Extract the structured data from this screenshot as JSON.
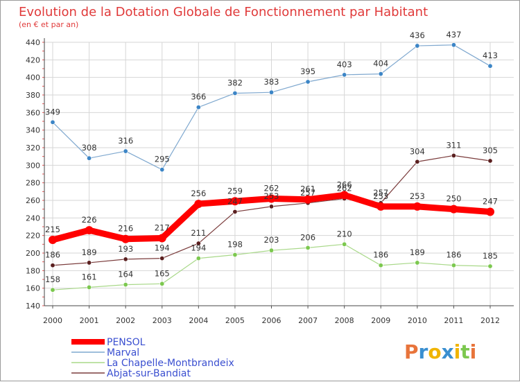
{
  "chart_data": {
    "type": "line",
    "title": "Evolution de la Dotation Globale de Fonctionnement par Habitant",
    "subtitle": "(en € et par an)",
    "categories": [
      "2000",
      "2001",
      "2002",
      "2003",
      "2004",
      "2005",
      "2006",
      "2007",
      "2008",
      "2009",
      "2010",
      "2011",
      "2012"
    ],
    "ylim": [
      140,
      440
    ],
    "yticks": [
      140,
      160,
      180,
      200,
      220,
      240,
      260,
      280,
      300,
      320,
      340,
      360,
      380,
      400,
      420,
      440
    ],
    "grid": true,
    "legend_position": "bottom-left",
    "series": [
      {
        "name": "Marval",
        "color": "#7fa8cf",
        "marker": "#3c85c6",
        "width": 1.2,
        "values": [
          349,
          308,
          316,
          295,
          366,
          382,
          383,
          395,
          403,
          404,
          436,
          437,
          413
        ]
      },
      {
        "name": "La Chapelle-Montbrandeix",
        "color": "#a8d888",
        "marker": "#7cc84f",
        "width": 1.2,
        "values": [
          158,
          161,
          164,
          165,
          194,
          198,
          203,
          206,
          210,
          186,
          189,
          186,
          185
        ]
      },
      {
        "name": "Abjat-sur-Bandiat",
        "color": "#7a3b3b",
        "marker": "#5a1f1f",
        "width": 1.2,
        "values": [
          186,
          189,
          193,
          194,
          211,
          247,
          253,
          257,
          262,
          257,
          304,
          311,
          305
        ]
      },
      {
        "name": "PENSOL",
        "color": "#ff0000",
        "marker": "#ff0000",
        "width": 9,
        "values": [
          215,
          226,
          216,
          217,
          256,
          259,
          262,
          261,
          266,
          253,
          253,
          250,
          247
        ]
      }
    ],
    "legend_order": [
      "PENSOL",
      "Marval",
      "La Chapelle-Montbrandeix",
      "Abjat-sur-Bandiat"
    ]
  },
  "logo": {
    "text": "Proxiti",
    "colors": [
      "#e8743b",
      "#3a8fd0",
      "#f0b400",
      "#3a8fd0",
      "#f0b400",
      "#7cc84f",
      "#e8743b"
    ]
  }
}
